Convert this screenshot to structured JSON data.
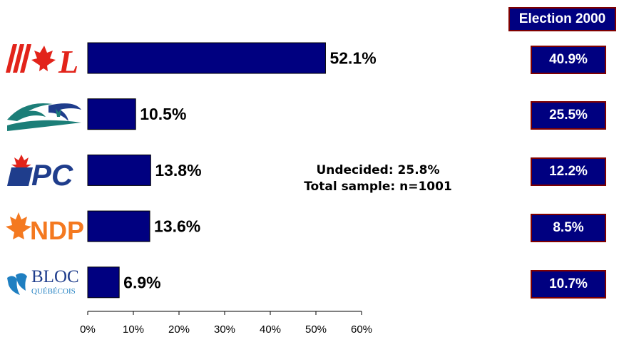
{
  "chart_data": {
    "type": "bar",
    "orientation": "horizontal",
    "categories": [
      "Liberal",
      "Canadian Alliance",
      "PC",
      "NDP",
      "BLOC QUÉBÉCOIS"
    ],
    "values": [
      52.1,
      10.5,
      13.8,
      13.6,
      6.9
    ],
    "value_labels": [
      "52.1%",
      "10.5%",
      "13.8%",
      "13.6%",
      "6.9%"
    ],
    "xlim": [
      0,
      60
    ],
    "ticks": [
      0,
      10,
      20,
      30,
      40,
      50,
      60
    ],
    "tick_labels": [
      "0%",
      "10%",
      "20%",
      "30%",
      "40%",
      "50%",
      "60%"
    ],
    "bar_color": "#000080",
    "grid": false
  },
  "election": {
    "header": "Election 2000",
    "values": [
      "40.9%",
      "25.5%",
      "12.2%",
      "8.5%",
      "10.7%"
    ]
  },
  "note": {
    "undecided": "Undecided: 25.8%",
    "sample": "Total sample: n=1001"
  },
  "logos": {
    "pc": "PC",
    "ndp": "NDP",
    "bloc_top": "BLOC",
    "bloc_bottom": "QUÉBÉCOIS",
    "liberal_letter": "L"
  }
}
